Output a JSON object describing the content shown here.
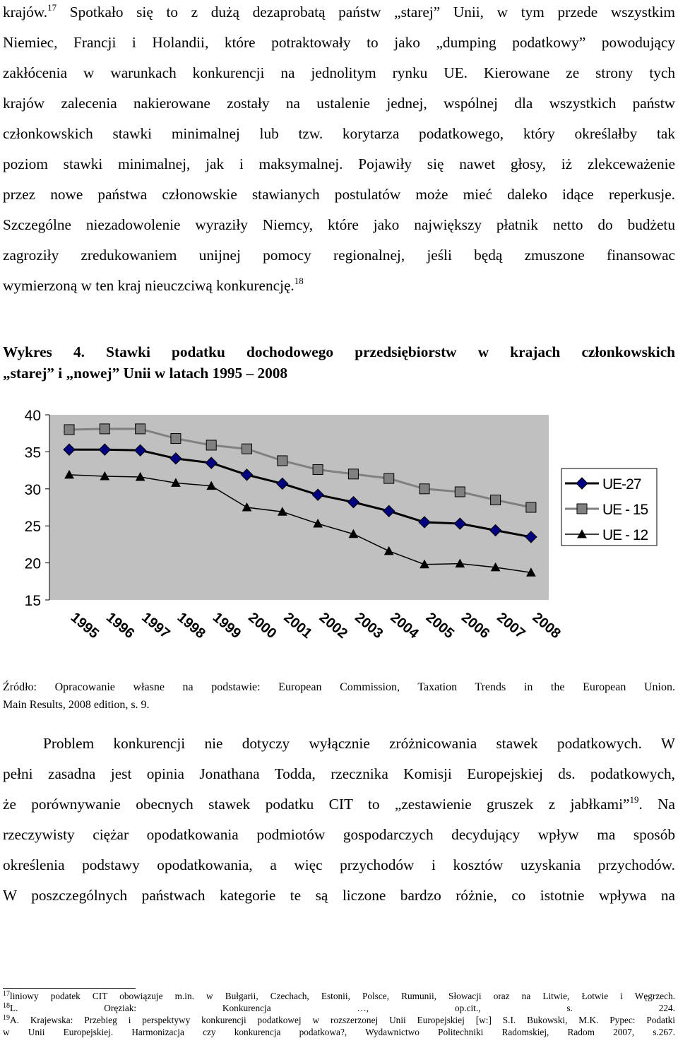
{
  "paragraph1": {
    "lines": [
      {
        "pre": "krajów.",
        "sup": "17",
        "post": " Spotkało się to z dużą dezaprobatą państw „starej” Unii, w tym przede wszystkim"
      },
      {
        "text": "Niemiec, Francji i Holandii, które potraktowały to jako „dumping podatkowy” powodujący"
      },
      {
        "text": "zakłócenia w warunkach konkurencji na jednolitym rynku UE. Kierowane ze strony tych"
      },
      {
        "text": "krajów zalecenia nakierowane zostały na ustalenie jednej, wspólnej dla wszystkich państw"
      },
      {
        "text": "członkowskich stawki minimalnej lub tzw. korytarza podatkowego, który określałby tak"
      },
      {
        "text": "poziom stawki minimalnej, jak i maksymalnej. Pojawiły się nawet głosy, iż zlekceważenie"
      },
      {
        "text": "przez nowe państwa członowskie stawianych postulatów może mieć daleko idące reperkusje."
      },
      {
        "text": "Szczególne niezadowolenie wyraziły Niemcy, które jako największy płatnik netto do budżetu"
      },
      {
        "text": "zagroziły zredukowaniem unijnej pomocy regionalnej, jeśli będą zmuszone finansowac"
      },
      {
        "pre": "wymierzoną w ten kraj nieuczciwą konkurencję.",
        "sup": "18",
        "post": ""
      }
    ]
  },
  "caption": {
    "line1": "Wykres 4. Stawki podatku dochodowego przedsiębiorstw w krajach członkowskich",
    "line2": "„starej” i „nowej” Unii w latach 1995 – 2008"
  },
  "chart_data": {
    "type": "line",
    "title": "Wykres 4. Stawki podatku dochodowego przedsiębiorstw w krajach członkowskich „starej” i „nowej” Unii w latach 1995 – 2008",
    "x": [
      "1995",
      "1996",
      "1997",
      "1998",
      "1999",
      "2000",
      "2001",
      "2002",
      "2003",
      "2004",
      "2005",
      "2006",
      "2007",
      "2008"
    ],
    "yticks": [
      "40",
      "35",
      "30",
      "25",
      "20",
      "15"
    ],
    "ylim": [
      15,
      40
    ],
    "grid": false,
    "legend_position": "right",
    "series": [
      {
        "name": "UE-27",
        "marker": "diamond",
        "color": "#000080",
        "values": [
          35.3,
          35.3,
          35.2,
          34.1,
          33.5,
          31.9,
          30.7,
          29.2,
          28.2,
          27.0,
          25.5,
          25.3,
          24.4,
          23.5
        ]
      },
      {
        "name": "UE - 15",
        "marker": "square",
        "color": "#808080",
        "values": [
          38.0,
          38.1,
          38.1,
          36.8,
          35.9,
          35.4,
          33.8,
          32.6,
          32.0,
          31.4,
          30.0,
          29.6,
          28.5,
          27.5
        ]
      },
      {
        "name": "UE - 12",
        "marker": "triangle",
        "color": "#000000",
        "values": [
          31.9,
          31.7,
          31.6,
          30.8,
          30.4,
          27.5,
          26.9,
          25.3,
          23.9,
          21.6,
          19.8,
          19.9,
          19.4,
          18.7
        ]
      }
    ],
    "colors": {
      "plot_area": "#c0c0c0",
      "axis": "#000000"
    }
  },
  "source": {
    "line1": "Źródło: Opracowanie własne na podstawie: European Commission, Taxation Trends in the European Union.",
    "line2": "Main Results, 2008 edition, s. 9."
  },
  "paragraph2": {
    "lines": [
      {
        "text": "Problem konkurencji nie dotyczy wyłącznie zróżnicowania stawek podatkowych. W"
      },
      {
        "text": "pełni zasadna jest opinia Jonathana Todda, rzecznika Komisji Europejskiej ds. podatkowych,"
      },
      {
        "pre": "że porównywanie obecnych stawek podatku CIT to „zestawienie gruszek z jabłkami”",
        "sup": "19",
        "post": ". Na"
      },
      {
        "text": "rzeczywisty ciężar opodatkowania podmiotów gospodarczych decydujący wpływ ma sposób"
      },
      {
        "text": "określenia podstawy opodatkowania, a więc przychodów i kosztów uzyskania przychodów."
      },
      {
        "text": "W poszczególnych państwach kategorie te są liczone bardzo różnie, co istotnie wpływa na"
      }
    ]
  },
  "footnotes": [
    {
      "num": "17",
      "text": "liniowy podatek CIT obowiązuje m.in. w Bułgarii, Czechach, Estonii, Polsce, Rumunii, Słowacji  oraz na Litwie, Łotwie i Węgrzech."
    },
    {
      "num": "18",
      "text": "L. Oręziak: Konkurencja …, op.cit., s. 224."
    },
    {
      "num": "19",
      "text": "A. Krajewska: Przebieg i perspektywy konkurencji podatkowej w rozszerzonej Unii Europejskiej [w:] S.I. Bukowski, M.K. Pypec: Podatki"
    },
    {
      "num": "",
      "text": "w Unii Europejskiej. Harmonizacja czy konkurencja podatkowa?, Wydawnictwo Politechniki Radomskiej, Radom 2007, s.267."
    }
  ]
}
